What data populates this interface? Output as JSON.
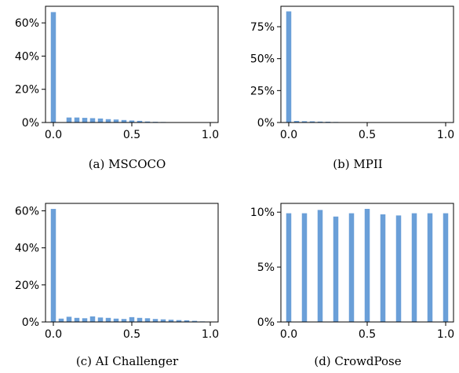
{
  "style": {
    "bar_color": "#6a9fd8",
    "axis_color": "#000000"
  },
  "chart_data": [
    {
      "type": "bar",
      "caption": "(a)  MSCOCO",
      "x": [
        0.0,
        0.1,
        0.15,
        0.2,
        0.25,
        0.3,
        0.35,
        0.4,
        0.45,
        0.5,
        0.55,
        0.6,
        0.65,
        0.7,
        0.75,
        0.8,
        0.85,
        0.9,
        0.95,
        1.0
      ],
      "values": [
        66.5,
        3.0,
        3.0,
        2.8,
        2.6,
        2.4,
        2.0,
        1.8,
        1.5,
        1.2,
        1.0,
        0.6,
        0.4,
        0.3,
        0.2,
        0.1,
        0.1,
        0.1,
        0.05,
        0.0
      ],
      "xlim": [
        -0.05,
        1.05
      ],
      "ylim": [
        0,
        70
      ],
      "xticks": [
        0.0,
        0.5,
        1.0
      ],
      "xtick_labels": [
        "0.0",
        "0.5",
        "1.0"
      ],
      "yticks": [
        0,
        20,
        40,
        60
      ],
      "ytick_labels": [
        "0%",
        "20%",
        "40%",
        "60%"
      ]
    },
    {
      "type": "bar",
      "caption": "(b)  MPII",
      "x": [
        0.0,
        0.05,
        0.1,
        0.15,
        0.2,
        0.25,
        0.3,
        0.35,
        0.4,
        0.45,
        0.5,
        0.55,
        0.6,
        0.65,
        0.7,
        0.75,
        0.8,
        0.85,
        0.9,
        0.95,
        1.0
      ],
      "values": [
        87.0,
        1.2,
        1.0,
        0.9,
        0.7,
        0.6,
        0.4,
        0.2,
        0.1,
        0.05,
        0.05,
        0.0,
        0.0,
        0.0,
        0.0,
        0.0,
        0.0,
        0.0,
        0.0,
        0.0,
        0.0
      ],
      "xlim": [
        -0.05,
        1.05
      ],
      "ylim": [
        0,
        91
      ],
      "xticks": [
        0.0,
        0.5,
        1.0
      ],
      "xtick_labels": [
        "0.0",
        "0.5",
        "1.0"
      ],
      "yticks": [
        0,
        25,
        50,
        75
      ],
      "ytick_labels": [
        "0%",
        "25%",
        "50%",
        "75%"
      ]
    },
    {
      "type": "bar",
      "caption": "(c)  AI Challenger",
      "x": [
        0.0,
        0.05,
        0.1,
        0.15,
        0.2,
        0.25,
        0.3,
        0.35,
        0.4,
        0.45,
        0.5,
        0.55,
        0.6,
        0.65,
        0.7,
        0.75,
        0.8,
        0.85,
        0.9,
        0.95,
        1.0
      ],
      "values": [
        61.0,
        1.8,
        2.8,
        2.2,
        2.0,
        3.0,
        2.4,
        2.2,
        1.8,
        1.6,
        2.6,
        2.2,
        2.0,
        1.6,
        1.4,
        1.2,
        1.0,
        0.9,
        0.6,
        0.3,
        0.2
      ],
      "xlim": [
        -0.05,
        1.05
      ],
      "ylim": [
        0,
        64
      ],
      "xticks": [
        0.0,
        0.5,
        1.0
      ],
      "xtick_labels": [
        "0.0",
        "0.5",
        "1.0"
      ],
      "yticks": [
        0,
        20,
        40,
        60
      ],
      "ytick_labels": [
        "0%",
        "20%",
        "40%",
        "60%"
      ]
    },
    {
      "type": "bar",
      "caption": "(d)  CrowdPose",
      "x": [
        0.0,
        0.1,
        0.2,
        0.3,
        0.4,
        0.5,
        0.6,
        0.7,
        0.8,
        0.9,
        1.0
      ],
      "values": [
        9.9,
        9.9,
        10.2,
        9.6,
        9.9,
        10.3,
        9.8,
        9.7,
        9.9,
        9.9,
        9.9
      ],
      "xlim": [
        -0.05,
        1.05
      ],
      "ylim": [
        0,
        10.8
      ],
      "xticks": [
        0.0,
        0.5,
        1.0
      ],
      "xtick_labels": [
        "0.0",
        "0.5",
        "1.0"
      ],
      "yticks": [
        0,
        5,
        10
      ],
      "ytick_labels": [
        "0%",
        "5%",
        "10%"
      ]
    }
  ]
}
